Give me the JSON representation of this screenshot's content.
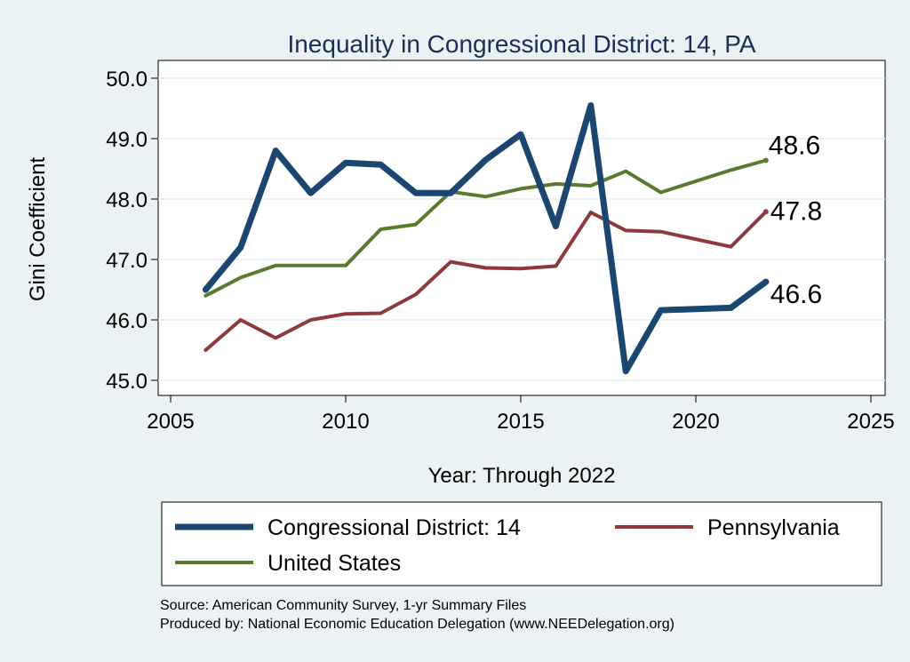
{
  "chart_data": {
    "type": "line",
    "title": "Inequality in Congressional District:  14, PA",
    "xlabel": "Year: Through 2022",
    "ylabel": "Gini Coefficient",
    "xlim": [
      2005,
      2025
    ],
    "ylim": [
      45.0,
      50.0
    ],
    "xticks": [
      2005,
      2010,
      2015,
      2020,
      2025
    ],
    "yticks": [
      45.0,
      46.0,
      47.0,
      48.0,
      49.0,
      50.0
    ],
    "ytick_labels": [
      "45.0",
      "46.0",
      "47.0",
      "48.0",
      "49.0",
      "50.0"
    ],
    "grid": true,
    "series": [
      {
        "name": "Congressional District:  14",
        "color": "#1a4670",
        "x": [
          2006,
          2007,
          2008,
          2009,
          2010,
          2011,
          2012,
          2013,
          2014,
          2015,
          2016,
          2017,
          2018,
          2019,
          2021,
          2022
        ],
        "values": [
          46.5,
          47.2,
          48.8,
          48.1,
          48.6,
          48.57,
          48.1,
          48.1,
          48.65,
          49.07,
          47.55,
          49.55,
          45.15,
          46.16,
          46.2,
          46.63
        ],
        "end_label": "46.6"
      },
      {
        "name": "Pennsylvania",
        "color": "#8e3a3d",
        "x": [
          2006,
          2007,
          2008,
          2009,
          2010,
          2011,
          2012,
          2013,
          2014,
          2015,
          2016,
          2017,
          2018,
          2019,
          2021,
          2022
        ],
        "values": [
          45.5,
          46.0,
          45.7,
          46.0,
          46.1,
          46.11,
          46.42,
          46.96,
          46.86,
          46.85,
          46.89,
          47.78,
          47.48,
          47.46,
          47.21,
          47.79
        ],
        "end_label": "47.8"
      },
      {
        "name": "United States",
        "color": "#5a7a2e",
        "x": [
          2006,
          2007,
          2008,
          2009,
          2010,
          2011,
          2012,
          2013,
          2014,
          2015,
          2016,
          2017,
          2018,
          2019,
          2021,
          2022
        ],
        "values": [
          46.4,
          46.7,
          46.9,
          46.9,
          46.9,
          47.5,
          47.58,
          48.12,
          48.04,
          48.17,
          48.25,
          48.22,
          48.46,
          48.11,
          48.48,
          48.64
        ],
        "end_label": "48.6"
      }
    ],
    "legend_position": "bottom",
    "notes": [
      "Source: American Community Survey, 1-yr Summary Files",
      "Produced by: National Economic Education Delegation (www.NEEDelegation.org)"
    ]
  }
}
